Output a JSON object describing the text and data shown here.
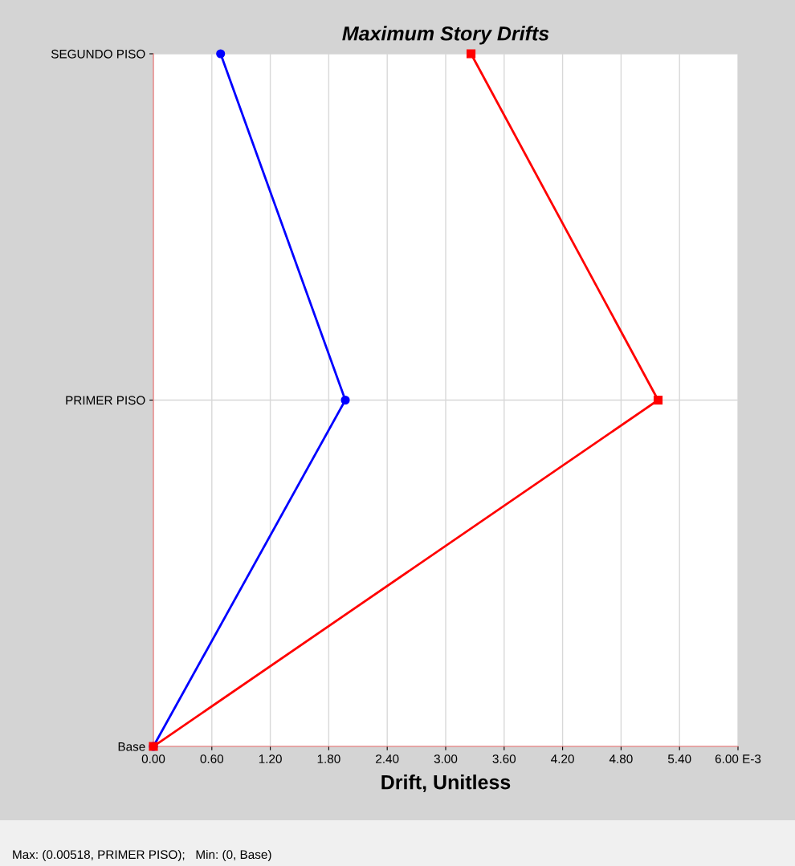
{
  "chart_data": {
    "type": "line",
    "orientation": "horizontal",
    "title": "Maximum Story Drifts",
    "xlabel": "Drift, Unitless",
    "categories": [
      "SEGUNDO PISO",
      "PRIMER PISO",
      "Base"
    ],
    "series": [
      {
        "color": "#0000ff",
        "marker": "circle",
        "values": [
          0.69,
          1.97,
          0
        ]
      },
      {
        "color": "#ff0000",
        "marker": "square",
        "values": [
          3.26,
          5.18,
          0
        ]
      }
    ],
    "xlim": [
      0,
      6
    ],
    "xticks": [
      {
        "value": 0,
        "label": "0.00"
      },
      {
        "value": 0.6,
        "label": "0.60"
      },
      {
        "value": 1.2,
        "label": "1.20"
      },
      {
        "value": 1.8,
        "label": "1.80"
      },
      {
        "value": 2.4,
        "label": "2.40"
      },
      {
        "value": 3.0,
        "label": "3.00"
      },
      {
        "value": 3.6,
        "label": "3.60"
      },
      {
        "value": 4.2,
        "label": "4.20"
      },
      {
        "value": 4.8,
        "label": "4.80"
      },
      {
        "value": 5.4,
        "label": "5.40"
      },
      {
        "value": 6,
        "label": "6.00 E-3"
      }
    ],
    "grid": true,
    "line_style": "solid",
    "annotations": [
      "Max: (0.00518, PRIMER PISO);   Min: (0, Base)"
    ]
  }
}
